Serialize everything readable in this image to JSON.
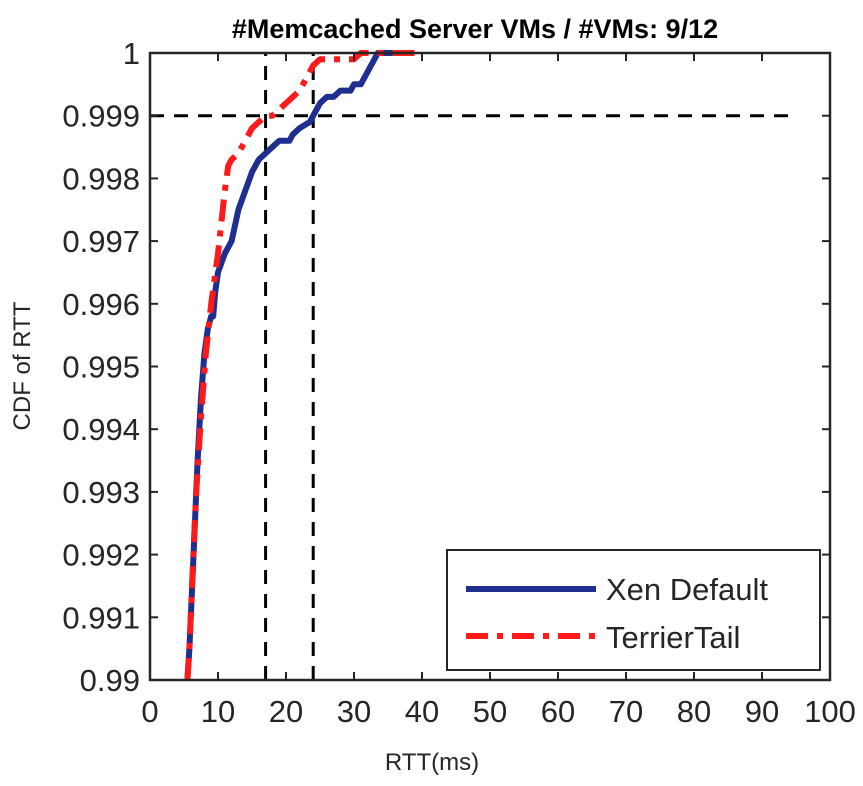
{
  "chart_data": {
    "type": "line",
    "title": "#Memcached Server VMs / #VMs: 9/12",
    "xlabel": "RTT(ms)",
    "ylabel": "CDF of RTT",
    "xlim": [
      0,
      100
    ],
    "ylim": [
      0.99,
      1.0
    ],
    "xticks": [
      0,
      10,
      20,
      30,
      40,
      50,
      60,
      70,
      80,
      90,
      100
    ],
    "xtick_labels": [
      "0",
      "10",
      "20",
      "30",
      "40",
      "50",
      "60",
      "70",
      "80",
      "90",
      "100"
    ],
    "yticks": [
      0.99,
      0.991,
      0.992,
      0.993,
      0.994,
      0.995,
      0.996,
      0.997,
      0.998,
      0.999,
      1.0
    ],
    "ytick_labels": [
      "0.99",
      "0.991",
      "0.992",
      "0.993",
      "0.994",
      "0.995",
      "0.996",
      "0.997",
      "0.998",
      "0.999",
      "1"
    ],
    "grid": false,
    "legend_position": "bottom-right",
    "series": [
      {
        "name": "Xen Default",
        "color": "#1f2f8f",
        "style": "solid",
        "x": [
          5.5,
          5.8,
          6.2,
          6.6,
          7.0,
          7.5,
          8.0,
          8.5,
          9.0,
          9.3,
          9.6,
          10.0,
          11.0,
          12.0,
          13.0,
          14.0,
          15.0,
          16.0,
          17.0,
          18.0,
          19.0,
          20.5,
          21.0,
          22.0,
          23.5,
          24.0,
          25.0,
          26.0,
          27.0,
          28.0,
          29.5,
          30.0,
          31.0,
          32.0,
          33.0,
          33.5,
          34.0,
          35.0,
          36.0
        ],
        "y": [
          0.99,
          0.9905,
          0.9915,
          0.9925,
          0.9935,
          0.9945,
          0.9952,
          0.9956,
          0.9958,
          0.9958,
          0.9962,
          0.9965,
          0.9968,
          0.997,
          0.9975,
          0.9978,
          0.9981,
          0.9983,
          0.9984,
          0.9985,
          0.9986,
          0.9986,
          0.9987,
          0.9988,
          0.9989,
          0.999,
          0.9992,
          0.9993,
          0.9993,
          0.9994,
          0.9994,
          0.9995,
          0.9995,
          0.9997,
          0.9999,
          1.0,
          1.0,
          1.0,
          1.0
        ]
      },
      {
        "name": "TerrierTail",
        "color": "#ff1a1a",
        "style": "dash-dot",
        "x": [
          5.5,
          5.8,
          6.3,
          6.8,
          7.5,
          8.2,
          9.0,
          10.0,
          10.5,
          11.0,
          11.5,
          12.0,
          13.0,
          14.0,
          15.0,
          16.0,
          17.0,
          18.0,
          19.0,
          20.0,
          21.0,
          22.0,
          23.0,
          23.5,
          24.0,
          25.0,
          26.0,
          27.0,
          28.0,
          30.0,
          31.0,
          33.0,
          36.0,
          38.0,
          40.0
        ],
        "y": [
          0.99,
          0.9905,
          0.9918,
          0.993,
          0.9942,
          0.9952,
          0.996,
          0.9968,
          0.9973,
          0.9978,
          0.9982,
          0.9983,
          0.9984,
          0.9986,
          0.9988,
          0.9989,
          0.999,
          0.999,
          0.9991,
          0.9992,
          0.9993,
          0.9994,
          0.9996,
          0.9997,
          0.9998,
          0.9999,
          0.9999,
          0.9999,
          0.9999,
          0.9999,
          1.0,
          1.0,
          1.0,
          1.0,
          1.0
        ]
      }
    ],
    "reference_lines": {
      "horizontal": [
        {
          "y": 0.999,
          "x_from": 0,
          "x_to": 95
        }
      ],
      "vertical": [
        {
          "x": 17,
          "y_from": 0.99,
          "y_to": 1.0
        },
        {
          "x": 24,
          "y_from": 0.99,
          "y_to": 1.0
        }
      ]
    }
  }
}
